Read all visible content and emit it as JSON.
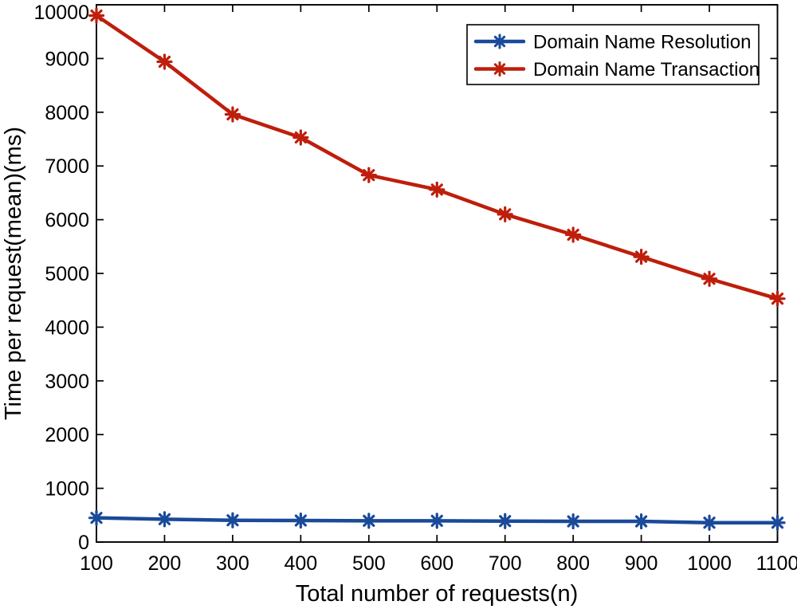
{
  "figure": {
    "background": "#ffffff",
    "axis_color": "#000000"
  },
  "chart_data": {
    "type": "line",
    "title": "",
    "xlabel": "Total number of requests(n)",
    "ylabel": "Time per request(mean)(ms)",
    "x": [
      100,
      200,
      300,
      400,
      500,
      600,
      700,
      800,
      900,
      1000,
      1100
    ],
    "xlim": [
      100,
      1100
    ],
    "ylim": [
      0,
      10000
    ],
    "xticks": [
      100,
      200,
      300,
      400,
      500,
      600,
      700,
      800,
      900,
      1000,
      1100
    ],
    "xtick_labels": [
      "100",
      "200",
      "300",
      "400",
      "500",
      "600",
      "700",
      "800",
      "900",
      "1000",
      "1100"
    ],
    "yticks": [
      0,
      1000,
      2000,
      3000,
      4000,
      5000,
      6000,
      7000,
      8000,
      9000,
      10000
    ],
    "ytick_labels": [
      "0",
      "1000",
      "2000",
      "3000",
      "4000",
      "5000",
      "6000",
      "7000",
      "8000",
      "9000",
      "10000"
    ],
    "grid": false,
    "legend_position": "top-right-inside",
    "marker": "asterisk",
    "series": [
      {
        "name": "Domain Name Resolution",
        "color": "#1A4A99",
        "marker": "asterisk",
        "values": [
          450,
          425,
          405,
          400,
          395,
          395,
          390,
          385,
          385,
          360,
          360
        ]
      },
      {
        "name": "Domain Name Transaction",
        "color": "#BE1E0B",
        "marker": "asterisk",
        "values": [
          9800,
          8940,
          7960,
          7530,
          6830,
          6560,
          6100,
          5720,
          5310,
          4900,
          4530
        ]
      }
    ]
  }
}
